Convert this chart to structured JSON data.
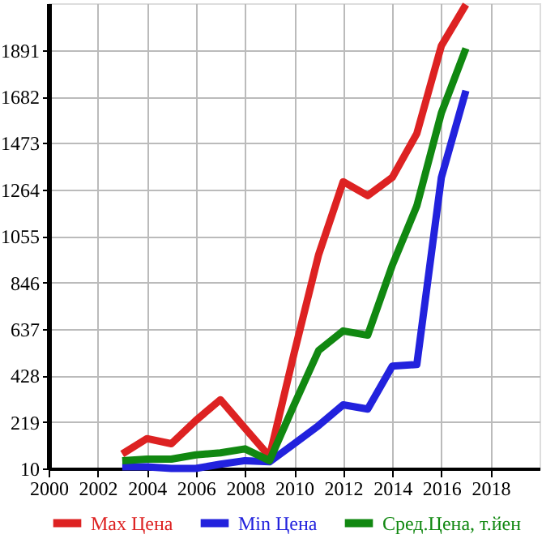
{
  "chart_data": {
    "type": "line",
    "x": [
      2003,
      2004,
      2005,
      2006,
      2007,
      2008,
      2009,
      2010,
      2011,
      2012,
      2013,
      2014,
      2015,
      2016,
      2017
    ],
    "series": [
      {
        "name": "Max Цена",
        "color": "#dd2222",
        "values": [
          75,
          144,
          121,
          226,
          319,
          191,
          64,
          527,
          971,
          1299,
          1236,
          1318,
          1515,
          1910,
          2095
        ]
      },
      {
        "name": "Min Цена",
        "color": "#2222dd",
        "values": [
          17,
          17,
          10,
          10,
          29,
          45,
          40,
          121,
          203,
          296,
          277,
          470,
          477,
          1318,
          1708
        ]
      },
      {
        "name": "Сред.Цена, т.йен",
        "color": "#118811",
        "values": [
          45,
          52,
          52,
          71,
          80,
          98,
          45,
          296,
          540,
          628,
          609,
          923,
          1190,
          1608,
          1898
        ]
      }
    ],
    "xlim": [
      2000,
      2020
    ],
    "xticks": [
      2000,
      2002,
      2004,
      2006,
      2008,
      2010,
      2012,
      2014,
      2016,
      2018
    ],
    "ylim": [
      10,
      2101
    ],
    "yticks": [
      10,
      219,
      428,
      637,
      846,
      1055,
      1264,
      1473,
      1682,
      1891
    ],
    "grid": true,
    "legend": "bottom",
    "marker": "none",
    "line_style": "solid"
  }
}
